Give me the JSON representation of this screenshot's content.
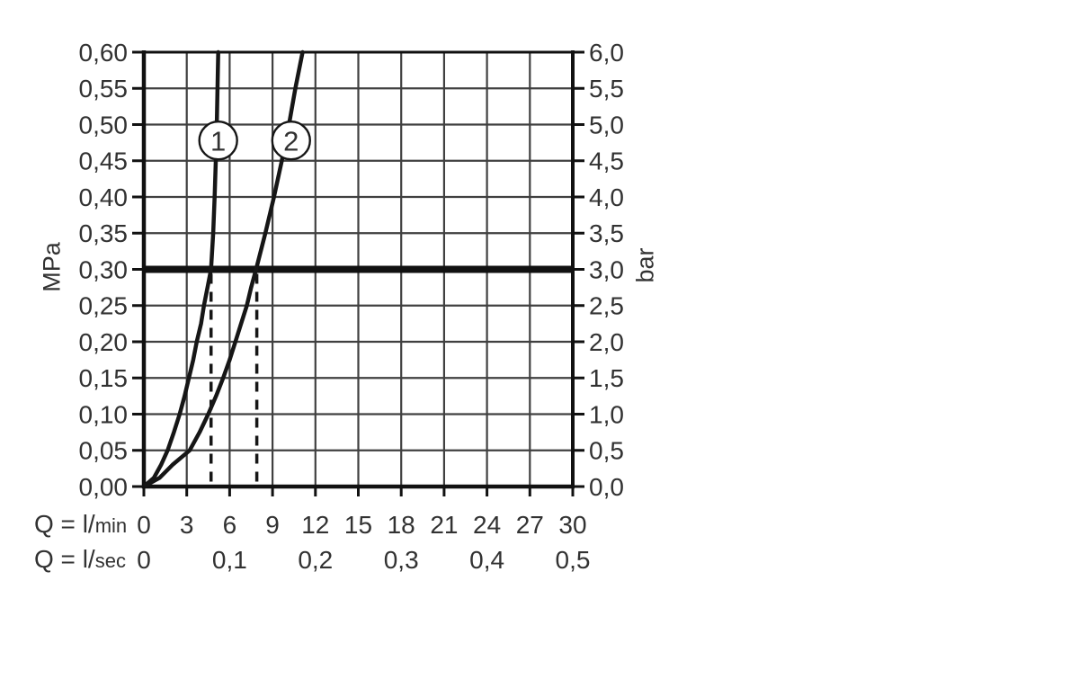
{
  "chart_data": {
    "type": "line",
    "left_axis": {
      "label": "MPa",
      "min": 0,
      "max": 0.6,
      "step": 0.05,
      "tick_labels": [
        "0,60",
        "0,55",
        "0,50",
        "0,45",
        "0,40",
        "0,35",
        "0,30",
        "0,25",
        "0,20",
        "0,15",
        "0,10",
        "0,05",
        "0,00"
      ]
    },
    "right_axis": {
      "label": "bar",
      "min": 0,
      "max": 6.0,
      "step": 0.5,
      "tick_labels": [
        "6,0",
        "5,5",
        "5,0",
        "4,5",
        "4,0",
        "3,5",
        "3,0",
        "2,5",
        "2,0",
        "1,5",
        "1,0",
        "0,5",
        "0,0"
      ]
    },
    "x_axis_primary": {
      "label_prefix": "Q = l/",
      "label_unit": "min",
      "min": 0,
      "max": 30,
      "step": 3,
      "ticks": [
        {
          "q": 0,
          "label": "0"
        },
        {
          "q": 3,
          "label": "3"
        },
        {
          "q": 6,
          "label": "6"
        },
        {
          "q": 9,
          "label": "9"
        },
        {
          "q": 12,
          "label": "12"
        },
        {
          "q": 15,
          "label": "15"
        },
        {
          "q": 18,
          "label": "18"
        },
        {
          "q": 21,
          "label": "21"
        },
        {
          "q": 24,
          "label": "24"
        },
        {
          "q": 27,
          "label": "27"
        },
        {
          "q": 30,
          "label": "30"
        }
      ]
    },
    "x_axis_secondary": {
      "label_prefix": "Q = l/",
      "label_unit": "sec",
      "ticks": [
        {
          "q": 0,
          "label": "0"
        },
        {
          "q": 6,
          "label": "0,1"
        },
        {
          "q": 12,
          "label": "0,2"
        },
        {
          "q": 18,
          "label": "0,3"
        },
        {
          "q": 24,
          "label": "0,4"
        },
        {
          "q": 30,
          "label": "0,5"
        }
      ]
    },
    "reference_line": {
      "mpa": 0.3,
      "bar": 3.0
    },
    "guide_lines_lmin": [
      4.7,
      7.9
    ],
    "series": [
      {
        "name": "1",
        "marker": {
          "q": 5.2,
          "mpa": 0.478
        },
        "points": [
          [
            0,
            0
          ],
          [
            0.7,
            0.012
          ],
          [
            1.2,
            0.03
          ],
          [
            1.66,
            0.05
          ],
          [
            2.1,
            0.075
          ],
          [
            2.5,
            0.1
          ],
          [
            2.85,
            0.125
          ],
          [
            3.15,
            0.15
          ],
          [
            3.45,
            0.175
          ],
          [
            3.7,
            0.2
          ],
          [
            4.0,
            0.225
          ],
          [
            4.2,
            0.25
          ],
          [
            4.45,
            0.275
          ],
          [
            4.7,
            0.3
          ],
          [
            4.85,
            0.35
          ],
          [
            4.95,
            0.4
          ],
          [
            5.03,
            0.45
          ],
          [
            5.1,
            0.5
          ],
          [
            5.15,
            0.55
          ],
          [
            5.2,
            0.6
          ]
        ]
      },
      {
        "name": "2",
        "marker": {
          "q": 10.3,
          "mpa": 0.478
        },
        "points": [
          [
            0,
            0
          ],
          [
            1.1,
            0.012
          ],
          [
            2.0,
            0.03
          ],
          [
            3.2,
            0.05
          ],
          [
            3.9,
            0.075
          ],
          [
            4.5,
            0.1
          ],
          [
            5.05,
            0.125
          ],
          [
            5.55,
            0.15
          ],
          [
            6.0,
            0.175
          ],
          [
            6.4,
            0.2
          ],
          [
            6.8,
            0.225
          ],
          [
            7.2,
            0.25
          ],
          [
            7.5,
            0.275
          ],
          [
            7.85,
            0.3
          ],
          [
            8.5,
            0.35
          ],
          [
            9.1,
            0.4
          ],
          [
            9.65,
            0.45
          ],
          [
            10.15,
            0.5
          ],
          [
            10.6,
            0.55
          ],
          [
            11.1,
            0.6
          ]
        ]
      }
    ],
    "colors": {
      "background": "#ffffff",
      "stroke": "#161616",
      "grid": "#404040",
      "frame": "#111111",
      "text": "#323232",
      "reference_line": "#111111"
    }
  }
}
